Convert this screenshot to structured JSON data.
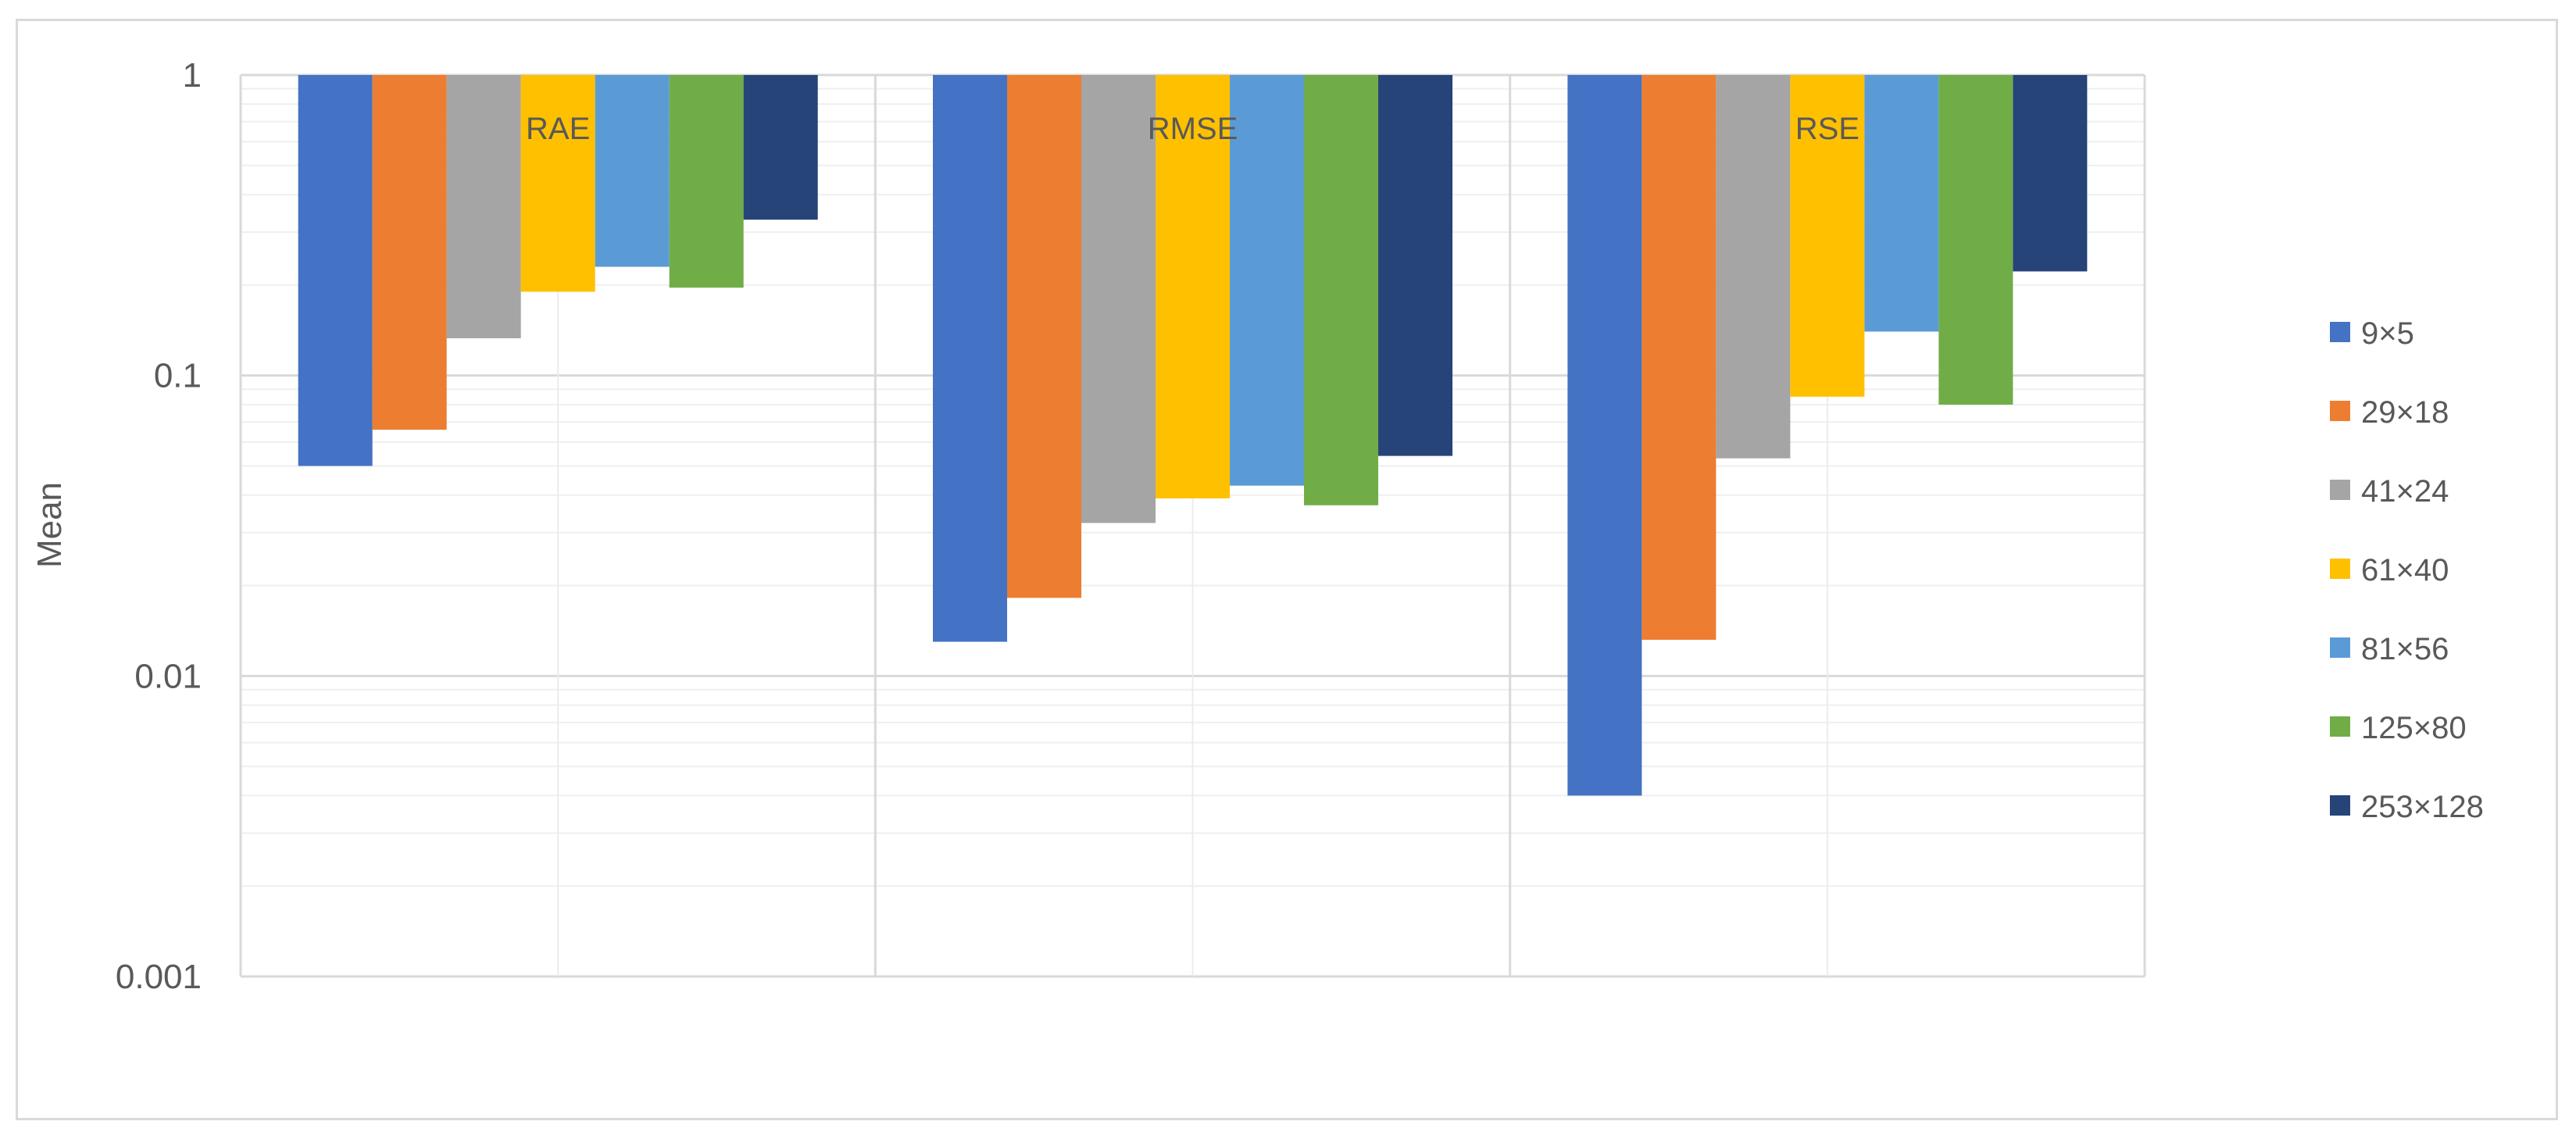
{
  "chart_data": {
    "type": "bar",
    "scale": "log",
    "orientation": "bars hang from top of axis (value 1) down to their value",
    "categories": [
      "RAE",
      "RMSE",
      "RSE"
    ],
    "ylabel": "Mean",
    "xlabel": "",
    "title": "",
    "ylim": [
      0.001,
      1
    ],
    "yticks": [
      {
        "value": 1,
        "label": "1"
      },
      {
        "value": 0.1,
        "label": "0.1"
      },
      {
        "value": 0.01,
        "label": "0.01"
      },
      {
        "value": 0.001,
        "label": "0.001"
      }
    ],
    "grid": true,
    "legend_position": "right",
    "series": [
      {
        "name": "9×5",
        "color": "#4472C4",
        "values": [
          0.05,
          0.013,
          0.004
        ]
      },
      {
        "name": "29×18",
        "color": "#ED7D31",
        "values": [
          0.066,
          0.0182,
          0.0132
        ]
      },
      {
        "name": "41×24",
        "color": "#A5A5A5",
        "values": [
          0.133,
          0.0323,
          0.053
        ]
      },
      {
        "name": "61×40",
        "color": "#FFC000",
        "values": [
          0.19,
          0.039,
          0.085
        ]
      },
      {
        "name": "81×56",
        "color": "#5B9BD5",
        "values": [
          0.23,
          0.043,
          0.14
        ]
      },
      {
        "name": "125×80",
        "color": "#70AD47",
        "values": [
          0.196,
          0.037,
          0.08
        ]
      },
      {
        "name": "253×128",
        "color": "#264478",
        "values": [
          0.33,
          0.054,
          0.222
        ]
      }
    ]
  }
}
